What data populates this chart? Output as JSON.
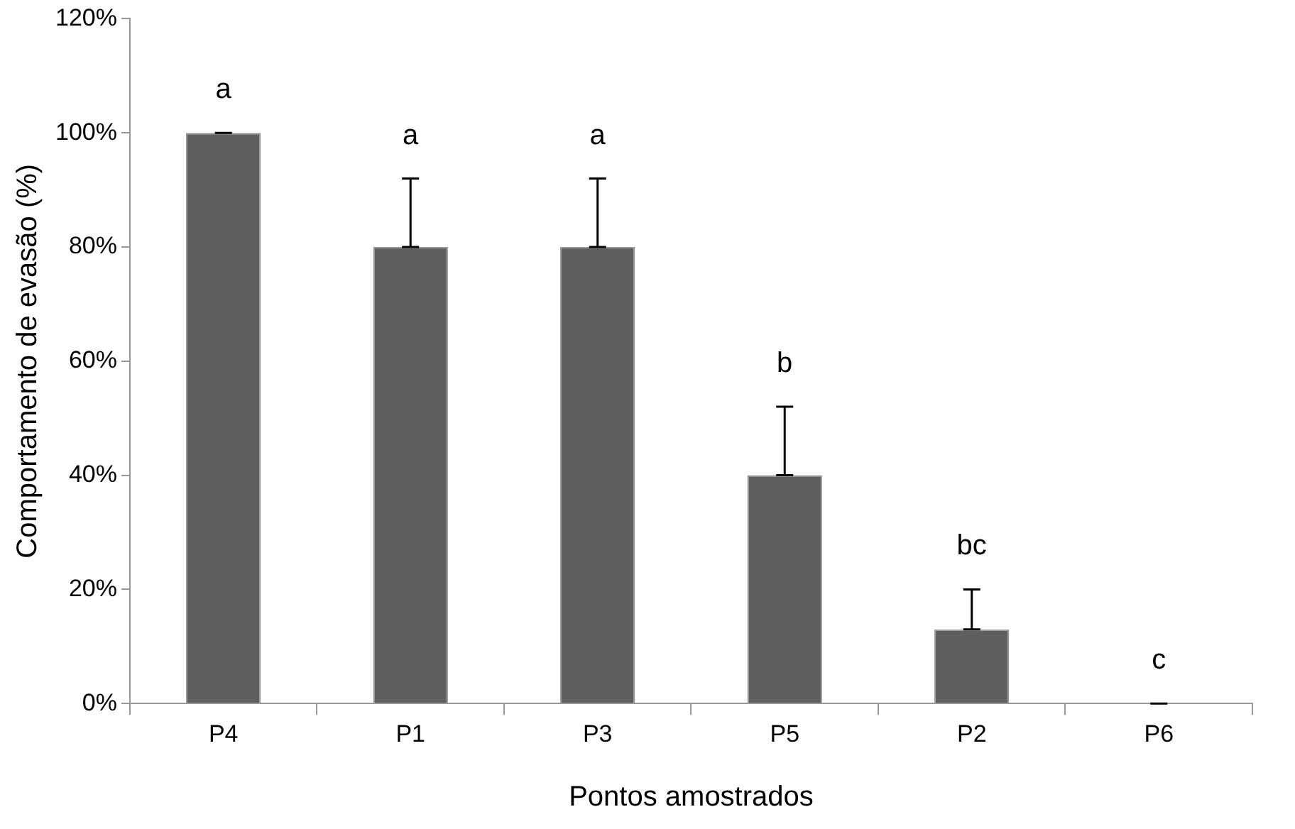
{
  "chart_data": {
    "type": "bar",
    "xlabel": "Pontos amostrados",
    "ylabel": "Comportamento de evasão (%)",
    "categories": [
      "P4",
      "P1",
      "P3",
      "P5",
      "P2",
      "P6"
    ],
    "values": [
      100,
      80,
      80,
      40,
      13,
      0
    ],
    "color": "#5f5f5f",
    "errors": [
      [
        100,
        100
      ],
      [
        80,
        92
      ],
      [
        80,
        92
      ],
      [
        40,
        52
      ],
      [
        13,
        20
      ],
      [
        0,
        0
      ]
    ],
    "ylim": [
      0,
      120
    ],
    "yticks": [
      {
        "value": 0,
        "label": "0%"
      },
      {
        "value": 20,
        "label": "20%"
      },
      {
        "value": 40,
        "label": "40%"
      },
      {
        "value": 60,
        "label": "60%"
      },
      {
        "value": 80,
        "label": "80%"
      },
      {
        "value": 100,
        "label": "100%"
      },
      {
        "value": 120,
        "label": "120%"
      }
    ],
    "annotations": [
      "a",
      "a",
      "a",
      "b",
      "bc",
      "c"
    ],
    "grid": false,
    "legend": false
  }
}
